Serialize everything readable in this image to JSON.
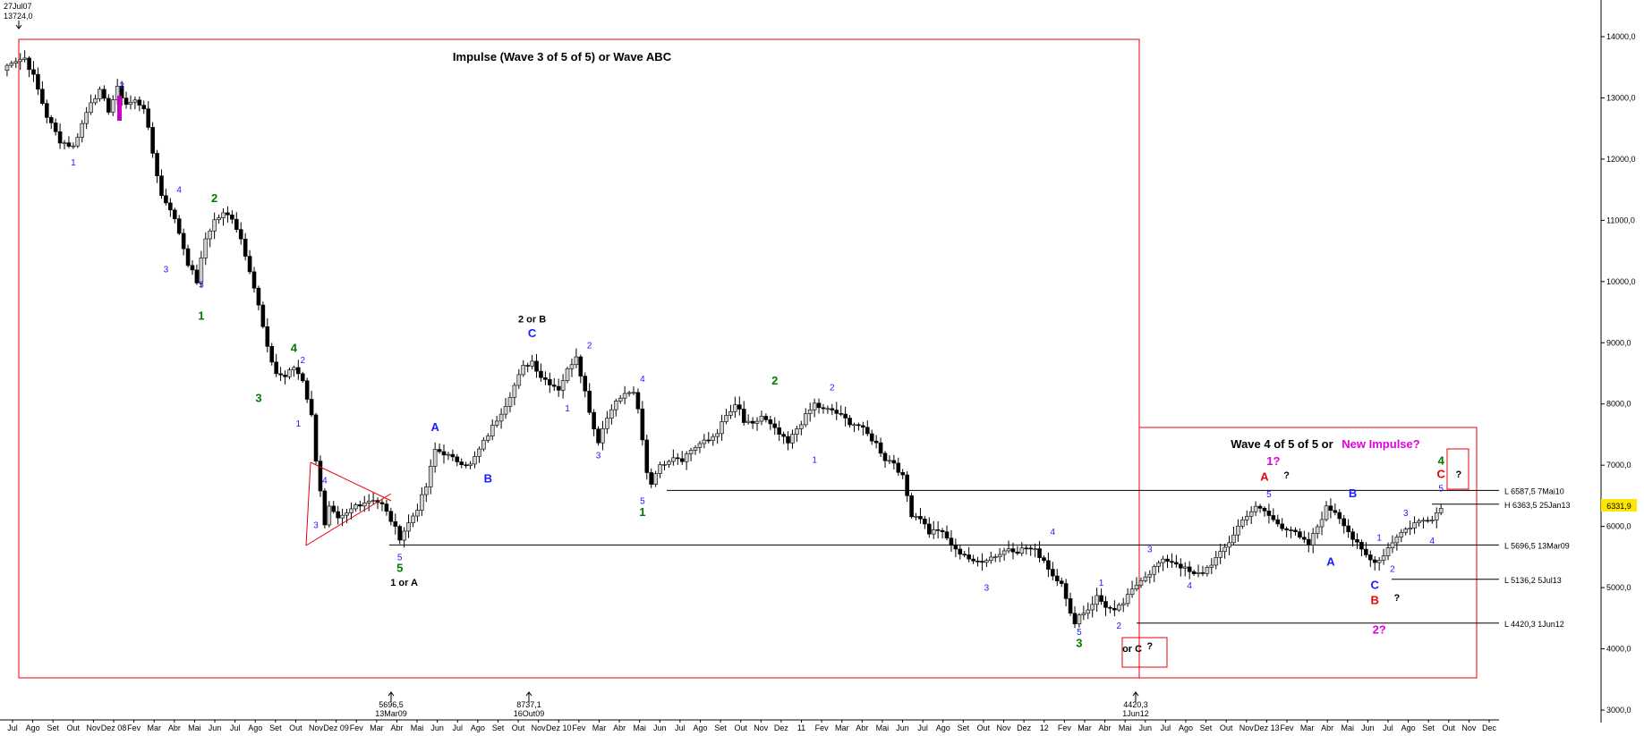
{
  "colors": {
    "box": "#e8000b",
    "wave_blue": "#1a1aff",
    "wave_green": "#007a00",
    "wave_red": "#e8000b",
    "wave_magenta": "#e000e0",
    "wave_black": "#000000",
    "candle_up": "#d0d0d0",
    "candle_down": "#000000",
    "last_price_bg": "#ffe600"
  },
  "chart_data": {
    "type": "candlestick",
    "title": "",
    "ylim": [
      3000,
      14000
    ],
    "y_ticks": [
      "14000,0",
      "13000,0",
      "12000,0",
      "11000,0",
      "10000,0",
      "9000,0",
      "8000,0",
      "7000,0",
      "6000,0",
      "5000,0",
      "4000,0",
      "3000,0"
    ],
    "x_ticks": [
      "Jul",
      "Ago",
      "Set",
      "Out",
      "Nov",
      "Dez 08",
      "Fev",
      "Mar",
      "Abr",
      "Mai",
      "Jun",
      "Jul",
      "Ago",
      "Set",
      "Out",
      "Nov",
      "Dez 09",
      "Fev",
      "Mar",
      "Abr",
      "Mai",
      "Jun",
      "Jul",
      "Ago",
      "Set",
      "Out",
      "Nov",
      "Dez 10",
      "Fev",
      "Mar",
      "Abr",
      "Mai",
      "Jun",
      "Jul",
      "Ago",
      "Set",
      "Out",
      "Nov",
      "Dez",
      "11",
      "Fev",
      "Mar",
      "Abr",
      "Mai",
      "Jun",
      "Jul",
      "Ago",
      "Set",
      "Out",
      "Nov",
      "Dez",
      "12",
      "Fev",
      "Mar",
      "Abr",
      "Mai",
      "Jun",
      "Jul",
      "Ago",
      "Set",
      "Out",
      "Nov",
      "Dez 13",
      "Fev",
      "Mar",
      "Abr",
      "Mai",
      "Jun",
      "Jul",
      "Ago",
      "Set",
      "Out",
      "Nov",
      "Dec"
    ],
    "last_price": "6331,9",
    "price_path": [
      [
        0,
        13450
      ],
      [
        2,
        13600
      ],
      [
        5,
        13650
      ],
      [
        7,
        13350
      ],
      [
        10,
        12700
      ],
      [
        13,
        12300
      ],
      [
        16,
        12200
      ],
      [
        20,
        12950
      ],
      [
        22,
        13100
      ],
      [
        24,
        12800
      ],
      [
        26,
        13150
      ],
      [
        28,
        12900
      ],
      [
        30,
        12950
      ],
      [
        32,
        12850
      ],
      [
        34,
        12100
      ],
      [
        36,
        11400
      ],
      [
        38,
        11200
      ],
      [
        40,
        10800
      ],
      [
        42,
        10300
      ],
      [
        44,
        10000
      ],
      [
        46,
        10700
      ],
      [
        48,
        11000
      ],
      [
        50,
        11100
      ],
      [
        52,
        11050
      ],
      [
        54,
        10700
      ],
      [
        56,
        10200
      ],
      [
        58,
        9600
      ],
      [
        60,
        8900
      ],
      [
        62,
        8500
      ],
      [
        64,
        8450
      ],
      [
        66,
        8600
      ],
      [
        68,
        8400
      ],
      [
        70,
        7800
      ],
      [
        71,
        7100
      ],
      [
        72,
        6600
      ],
      [
        73,
        6000
      ],
      [
        74,
        6300
      ],
      [
        76,
        6100
      ],
      [
        78,
        6200
      ],
      [
        80,
        6350
      ],
      [
        82,
        6400
      ],
      [
        84,
        6450
      ],
      [
        86,
        6350
      ],
      [
        88,
        6100
      ],
      [
        90,
        5820
      ],
      [
        92,
        6050
      ],
      [
        94,
        6300
      ],
      [
        96,
        6650
      ],
      [
        97,
        6950
      ],
      [
        98,
        7250
      ],
      [
        100,
        7200
      ],
      [
        102,
        7100
      ],
      [
        104,
        7050
      ],
      [
        106,
        7000
      ],
      [
        108,
        7250
      ],
      [
        110,
        7500
      ],
      [
        112,
        7750
      ],
      [
        114,
        8000
      ],
      [
        116,
        8300
      ],
      [
        118,
        8600
      ],
      [
        120,
        8700
      ],
      [
        122,
        8450
      ],
      [
        124,
        8350
      ],
      [
        126,
        8250
      ],
      [
        128,
        8550
      ],
      [
        130,
        8800
      ],
      [
        132,
        8200
      ],
      [
        134,
        7600
      ],
      [
        135,
        7400
      ],
      [
        136,
        7600
      ],
      [
        138,
        7950
      ],
      [
        140,
        8100
      ],
      [
        142,
        8200
      ],
      [
        143,
        8150
      ],
      [
        144,
        7900
      ],
      [
        145,
        7400
      ],
      [
        146,
        6900
      ],
      [
        147,
        6700
      ],
      [
        148,
        6900
      ],
      [
        150,
        7050
      ],
      [
        152,
        7150
      ],
      [
        154,
        7100
      ],
      [
        156,
        7250
      ],
      [
        158,
        7350
      ],
      [
        160,
        7400
      ],
      [
        162,
        7550
      ],
      [
        164,
        7800
      ],
      [
        166,
        7950
      ],
      [
        167,
        7900
      ],
      [
        168,
        7700
      ],
      [
        170,
        7650
      ],
      [
        172,
        7800
      ],
      [
        174,
        7650
      ],
      [
        176,
        7500
      ],
      [
        178,
        7350
      ],
      [
        180,
        7600
      ],
      [
        182,
        7800
      ],
      [
        184,
        8000
      ],
      [
        186,
        7900
      ],
      [
        188,
        7900
      ],
      [
        190,
        7800
      ],
      [
        192,
        7700
      ],
      [
        194,
        7650
      ],
      [
        196,
        7500
      ],
      [
        198,
        7350
      ],
      [
        200,
        7100
      ],
      [
        202,
        7050
      ],
      [
        204,
        6800
      ],
      [
        205,
        6500
      ],
      [
        206,
        6200
      ],
      [
        208,
        6150
      ],
      [
        210,
        5900
      ],
      [
        212,
        5950
      ],
      [
        214,
        5800
      ],
      [
        216,
        5600
      ],
      [
        218,
        5550
      ],
      [
        220,
        5400
      ],
      [
        222,
        5450
      ],
      [
        224,
        5500
      ],
      [
        226,
        5550
      ],
      [
        228,
        5650
      ],
      [
        230,
        5600
      ],
      [
        232,
        5650
      ],
      [
        234,
        5600
      ],
      [
        236,
        5450
      ],
      [
        238,
        5200
      ],
      [
        240,
        5100
      ],
      [
        241,
        4800
      ],
      [
        242,
        4550
      ],
      [
        243,
        4450
      ],
      [
        244,
        4550
      ],
      [
        246,
        4650
      ],
      [
        248,
        4850
      ],
      [
        250,
        4700
      ],
      [
        252,
        4600
      ],
      [
        254,
        4750
      ],
      [
        256,
        4950
      ],
      [
        258,
        5150
      ],
      [
        260,
        5250
      ],
      [
        262,
        5400
      ],
      [
        264,
        5450
      ],
      [
        266,
        5400
      ],
      [
        268,
        5300
      ],
      [
        270,
        5200
      ],
      [
        272,
        5250
      ],
      [
        274,
        5400
      ],
      [
        276,
        5550
      ],
      [
        278,
        5750
      ],
      [
        280,
        6000
      ],
      [
        282,
        6200
      ],
      [
        284,
        6300
      ],
      [
        286,
        6250
      ],
      [
        288,
        6100
      ],
      [
        290,
        6000
      ],
      [
        292,
        5950
      ],
      [
        294,
        5800
      ],
      [
        296,
        5700
      ],
      [
        298,
        6000
      ],
      [
        300,
        6300
      ],
      [
        302,
        6250
      ],
      [
        304,
        6050
      ],
      [
        306,
        5800
      ],
      [
        308,
        5600
      ],
      [
        310,
        5450
      ],
      [
        312,
        5450
      ],
      [
        314,
        5650
      ],
      [
        316,
        5850
      ],
      [
        318,
        5950
      ],
      [
        320,
        6050
      ],
      [
        322,
        6100
      ],
      [
        324,
        6150
      ],
      [
        326,
        6300
      ]
    ],
    "reference_lines": [
      {
        "label": "L 6587,5 7Mai10",
        "value": 6587.5
      },
      {
        "label": "H 6363,5 25Jan13",
        "value": 6363.5
      },
      {
        "label": "L 5696,5 13Mar09",
        "value": 5696.5
      },
      {
        "label": "L 5136,2 5Jul13",
        "value": 5136.2
      },
      {
        "label": "L 4420,3 1Jun12",
        "value": 4420.3
      }
    ],
    "annotations": {
      "top_date": "27Jul07",
      "top_value": "13724,0",
      "bottom_markers": [
        {
          "value": "5696,5",
          "date": "13Mar09"
        },
        {
          "value": "8737,1",
          "date": "16Out09"
        },
        {
          "value": "4420,3",
          "date": "1Jun12"
        }
      ],
      "box1_title": "Impulse (Wave 3 of 5 of 5) or Wave ABC",
      "box2_title_black": "Wave 4 of 5 of 5 or",
      "box2_title_magenta": "New Impulse?"
    },
    "wave_labels": [
      {
        "text": "2",
        "color": "blue",
        "i": 27,
        "v": 13150,
        "size": 10
      },
      {
        "text": "1",
        "color": "blue",
        "i": 16,
        "v": 11900,
        "size": 10
      },
      {
        "text": "4",
        "color": "blue",
        "i": 40,
        "v": 11450,
        "size": 10
      },
      {
        "text": "2",
        "color": "green",
        "i": 48,
        "v": 11300,
        "size": 13,
        "bold": true
      },
      {
        "text": "3",
        "color": "blue",
        "i": 37,
        "v": 10150,
        "size": 10
      },
      {
        "text": "5",
        "color": "blue",
        "i": 45,
        "v": 9900,
        "size": 10
      },
      {
        "text": "1",
        "color": "green",
        "i": 45,
        "v": 9380,
        "size": 13,
        "bold": true
      },
      {
        "text": "4",
        "color": "green",
        "i": 66,
        "v": 8850,
        "size": 13,
        "bold": true
      },
      {
        "text": "2",
        "color": "blue",
        "i": 68,
        "v": 8670,
        "size": 10
      },
      {
        "text": "3",
        "color": "green",
        "i": 58,
        "v": 8030,
        "size": 13,
        "bold": true
      },
      {
        "text": "1",
        "color": "blue",
        "i": 67,
        "v": 7630,
        "size": 10
      },
      {
        "text": "4",
        "color": "blue",
        "i": 73,
        "v": 6700,
        "size": 10
      },
      {
        "text": "3",
        "color": "blue",
        "i": 71,
        "v": 5970,
        "size": 10
      },
      {
        "text": "5",
        "color": "blue",
        "i": 90,
        "v": 5450,
        "size": 10
      },
      {
        "text": "5",
        "color": "green",
        "i": 90,
        "v": 5260,
        "size": 13,
        "bold": true
      },
      {
        "text": "1 or A",
        "color": "black",
        "i": 91,
        "v": 5030,
        "size": 11,
        "bold": true
      },
      {
        "text": "A",
        "color": "blue",
        "i": 98,
        "v": 7560,
        "size": 13,
        "bold": true
      },
      {
        "text": "B",
        "color": "blue",
        "i": 110,
        "v": 6720,
        "size": 13,
        "bold": true
      },
      {
        "text": "2 or B",
        "color": "black",
        "i": 120,
        "v": 9330,
        "size": 11,
        "bold": true
      },
      {
        "text": "C",
        "color": "blue",
        "i": 120,
        "v": 9090,
        "size": 13,
        "bold": true
      },
      {
        "text": "2",
        "color": "blue",
        "i": 133,
        "v": 8910,
        "size": 10
      },
      {
        "text": "1",
        "color": "blue",
        "i": 128,
        "v": 7880,
        "size": 10
      },
      {
        "text": "3",
        "color": "blue",
        "i": 135,
        "v": 7110,
        "size": 10
      },
      {
        "text": "4",
        "color": "blue",
        "i": 145,
        "v": 8360,
        "size": 10
      },
      {
        "text": "5",
        "color": "blue",
        "i": 145,
        "v": 6370,
        "size": 10
      },
      {
        "text": "1",
        "color": "green",
        "i": 145,
        "v": 6170,
        "size": 13,
        "bold": true
      },
      {
        "text": "2",
        "color": "green",
        "i": 175,
        "v": 8320,
        "size": 13,
        "bold": true
      },
      {
        "text": "2",
        "color": "blue",
        "i": 188,
        "v": 8220,
        "size": 10
      },
      {
        "text": "1",
        "color": "blue",
        "i": 184,
        "v": 7040,
        "size": 10
      },
      {
        "text": "4",
        "color": "blue",
        "i": 238,
        "v": 5860,
        "size": 10
      },
      {
        "text": "3",
        "color": "blue",
        "i": 223,
        "v": 4950,
        "size": 10
      },
      {
        "text": "5",
        "color": "blue",
        "i": 244,
        "v": 4230,
        "size": 10
      },
      {
        "text": "3",
        "color": "green",
        "i": 244,
        "v": 4030,
        "size": 13,
        "bold": true
      },
      {
        "text": "1",
        "color": "blue",
        "i": 249,
        "v": 5030,
        "size": 10
      },
      {
        "text": "2",
        "color": "blue",
        "i": 253,
        "v": 4330,
        "size": 10
      },
      {
        "text": "3",
        "color": "blue",
        "i": 260,
        "v": 5580,
        "size": 10
      },
      {
        "text": "4",
        "color": "blue",
        "i": 269,
        "v": 4990,
        "size": 10
      },
      {
        "text": "1?",
        "color": "magenta",
        "i": 288,
        "v": 7000,
        "size": 13,
        "bold": true
      },
      {
        "text": "A",
        "color": "red",
        "i": 286,
        "v": 6750,
        "size": 13,
        "bold": true
      },
      {
        "text": "?",
        "color": "black",
        "i": 291,
        "v": 6780,
        "size": 11,
        "bold": true
      },
      {
        "text": "5",
        "color": "blue",
        "i": 287,
        "v": 6480,
        "size": 10
      },
      {
        "text": "B",
        "color": "blue",
        "i": 306,
        "v": 6480,
        "size": 13,
        "bold": true
      },
      {
        "text": "A",
        "color": "blue",
        "i": 301,
        "v": 5360,
        "size": 13,
        "bold": true
      },
      {
        "text": "3",
        "color": "blue",
        "i": 318,
        "v": 6170,
        "size": 10
      },
      {
        "text": "4",
        "color": "blue",
        "i": 324,
        "v": 5720,
        "size": 10
      },
      {
        "text": "1",
        "color": "blue",
        "i": 312,
        "v": 5770,
        "size": 10
      },
      {
        "text": "2",
        "color": "blue",
        "i": 315,
        "v": 5260,
        "size": 10
      },
      {
        "text": "C",
        "color": "blue",
        "i": 311,
        "v": 4980,
        "size": 13,
        "bold": true
      },
      {
        "text": "B",
        "color": "red",
        "i": 311,
        "v": 4730,
        "size": 13,
        "bold": true
      },
      {
        "text": "?",
        "color": "black",
        "i": 316,
        "v": 4780,
        "size": 11,
        "bold": true
      },
      {
        "text": "2?",
        "color": "magenta",
        "i": 312,
        "v": 4250,
        "size": 13,
        "bold": true
      },
      {
        "text": "4",
        "color": "green",
        "i": 326,
        "v": 7010,
        "size": 13,
        "bold": true
      },
      {
        "text": "C",
        "color": "red",
        "i": 326,
        "v": 6790,
        "size": 13,
        "bold": true
      },
      {
        "text": "5",
        "color": "blue",
        "i": 326,
        "v": 6570,
        "size": 10
      },
      {
        "text": "?",
        "color": "black",
        "i": 330,
        "v": 6800,
        "size": 11,
        "bold": true
      },
      {
        "text": "or C",
        "color": "black",
        "i": 256,
        "v": 3950,
        "size": 11,
        "bold": true
      },
      {
        "text": "?",
        "color": "black",
        "i": 260,
        "v": 3990,
        "size": 11,
        "bold": true
      }
    ]
  }
}
